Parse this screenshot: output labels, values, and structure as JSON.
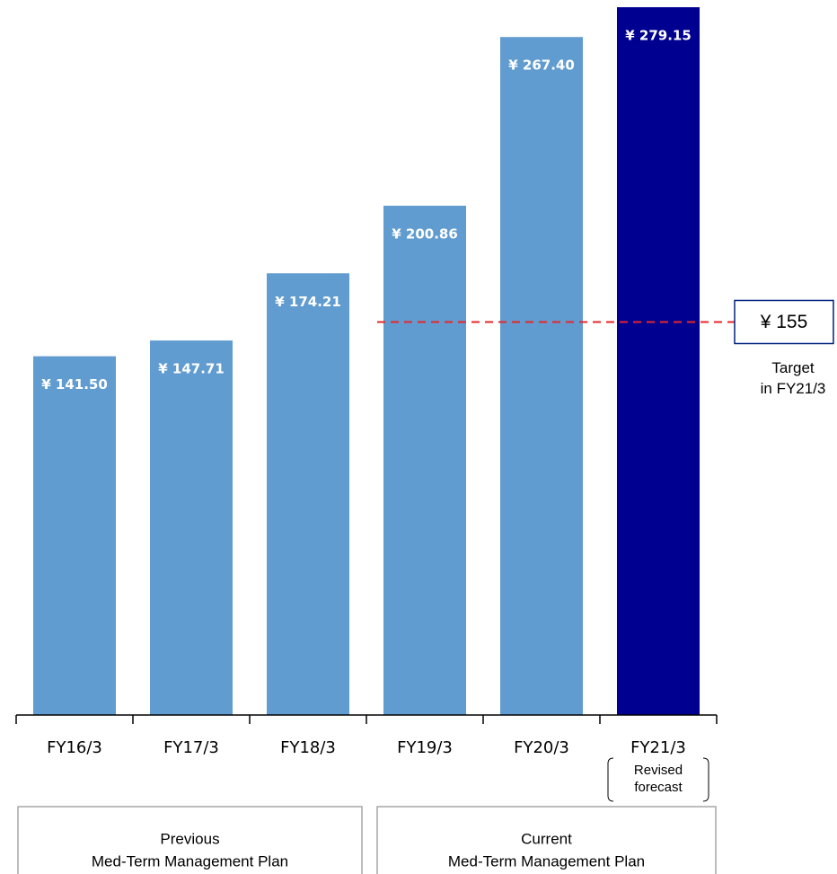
{
  "chart_data": {
    "type": "bar",
    "categories": [
      "FY16/3",
      "FY17/3",
      "FY18/3",
      "FY19/3",
      "FY20/3",
      "FY21/3"
    ],
    "values": [
      141.5,
      147.71,
      174.21,
      200.86,
      267.4,
      279.15
    ],
    "value_labels": [
      "¥ 141.50",
      "¥ 147.71",
      "¥ 174.21",
      "¥ 200.86",
      "¥ 267.40",
      "¥ 279.15"
    ],
    "colors": [
      "#619cd0",
      "#619cd0",
      "#619cd0",
      "#619cd0",
      "#619cd0",
      "#000090"
    ],
    "ylim": [
      0,
      282
    ],
    "forecast_note": [
      "Revised",
      "forecast"
    ],
    "target": {
      "value": 155,
      "label": "¥ 155",
      "text": [
        "Target",
        "in FY21/3"
      ],
      "color": "#e8262a"
    },
    "groups": [
      {
        "title": "Previous",
        "subtitle": "Med-Term Management Plan"
      },
      {
        "title": "Current",
        "subtitle": "Med-Term Management Plan"
      }
    ]
  }
}
